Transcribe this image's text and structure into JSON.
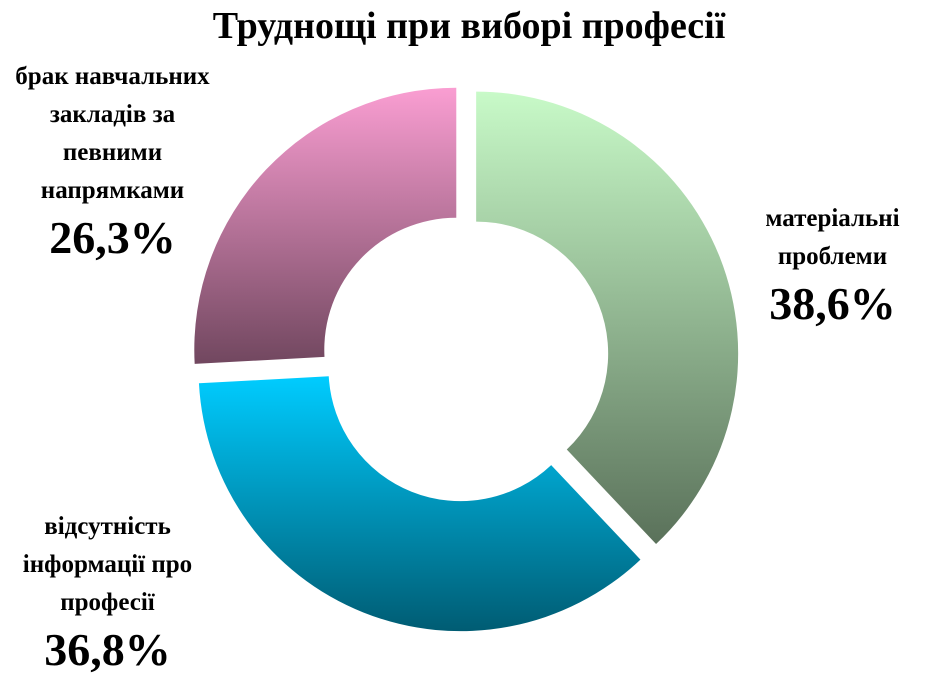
{
  "chart_data": {
    "type": "donut",
    "title": "Труднощі при виборі професії",
    "categories": [
      "матеріальні проблеми",
      "відсутність інформації про професії",
      "брак навчальних закладів за певними напрямками"
    ],
    "values": [
      38.6,
      36.8,
      26.3
    ],
    "value_labels": [
      "38,6%",
      "36,8%",
      "26,3%"
    ],
    "colors": [
      "#c8fac8",
      "#00ccff",
      "#fa9ed2"
    ]
  }
}
